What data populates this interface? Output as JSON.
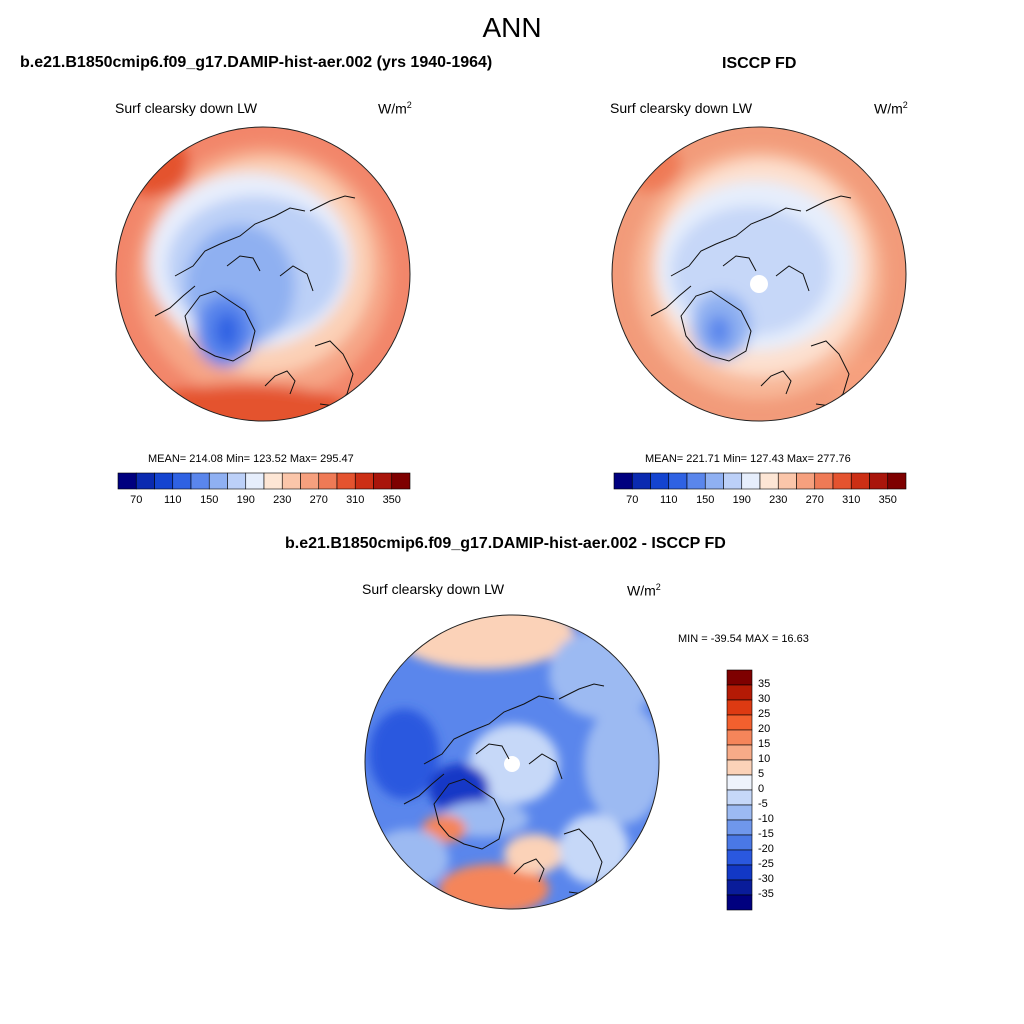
{
  "page": {
    "title": "ANN"
  },
  "left_panel": {
    "title": "b.e21.B1850cmip6.f09_g17.DAMIP-hist-aer.002 (yrs 1940-1964)",
    "variable": "Surf clearsky down LW",
    "units_base": "W/m",
    "units_exp": "2",
    "stats": "MEAN= 214.08  Min= 123.52  Max= 295.47"
  },
  "right_panel": {
    "title": "ISCCP FD",
    "variable": "Surf clearsky down LW",
    "units_base": "W/m",
    "units_exp": "2",
    "stats": "MEAN= 221.71  Min= 127.43  Max= 277.76"
  },
  "diff_panel": {
    "title": "b.e21.B1850cmip6.f09_g17.DAMIP-hist-aer.002 - ISCCP FD",
    "variable": "Surf clearsky down LW",
    "units_base": "W/m",
    "units_exp": "2",
    "stats": "MIN = -39.54 MAX =  16.63"
  },
  "abs_colorbar": {
    "colors": [
      "#00007f",
      "#0a2ab0",
      "#1444d0",
      "#2f62e3",
      "#5a86ec",
      "#8fb0f2",
      "#bcd0f8",
      "#e6eefc",
      "#fde6d5",
      "#fbc6aa",
      "#f6a07e",
      "#ef7a56",
      "#e4532f",
      "#cc2f15",
      "#a9150b",
      "#7e0000"
    ],
    "tick_labels": [
      "70",
      "110",
      "150",
      "190",
      "230",
      "270",
      "310",
      "350"
    ]
  },
  "diff_colorbar": {
    "colors": [
      "#7e0000",
      "#b41a05",
      "#dd3a12",
      "#f2602e",
      "#f5855a",
      "#f7ab88",
      "#fbd2b8",
      "#eef3fc",
      "#c6d8f8",
      "#9cbaf2",
      "#6f97ec",
      "#4a78e6",
      "#2a58df",
      "#1238c6",
      "#091c9a",
      "#00007f"
    ],
    "tick_labels": [
      "35",
      "30",
      "25",
      "20",
      "15",
      "10",
      "5",
      "0",
      "-5",
      "-10",
      "-15",
      "-20",
      "-25",
      "-30",
      "-35"
    ]
  }
}
